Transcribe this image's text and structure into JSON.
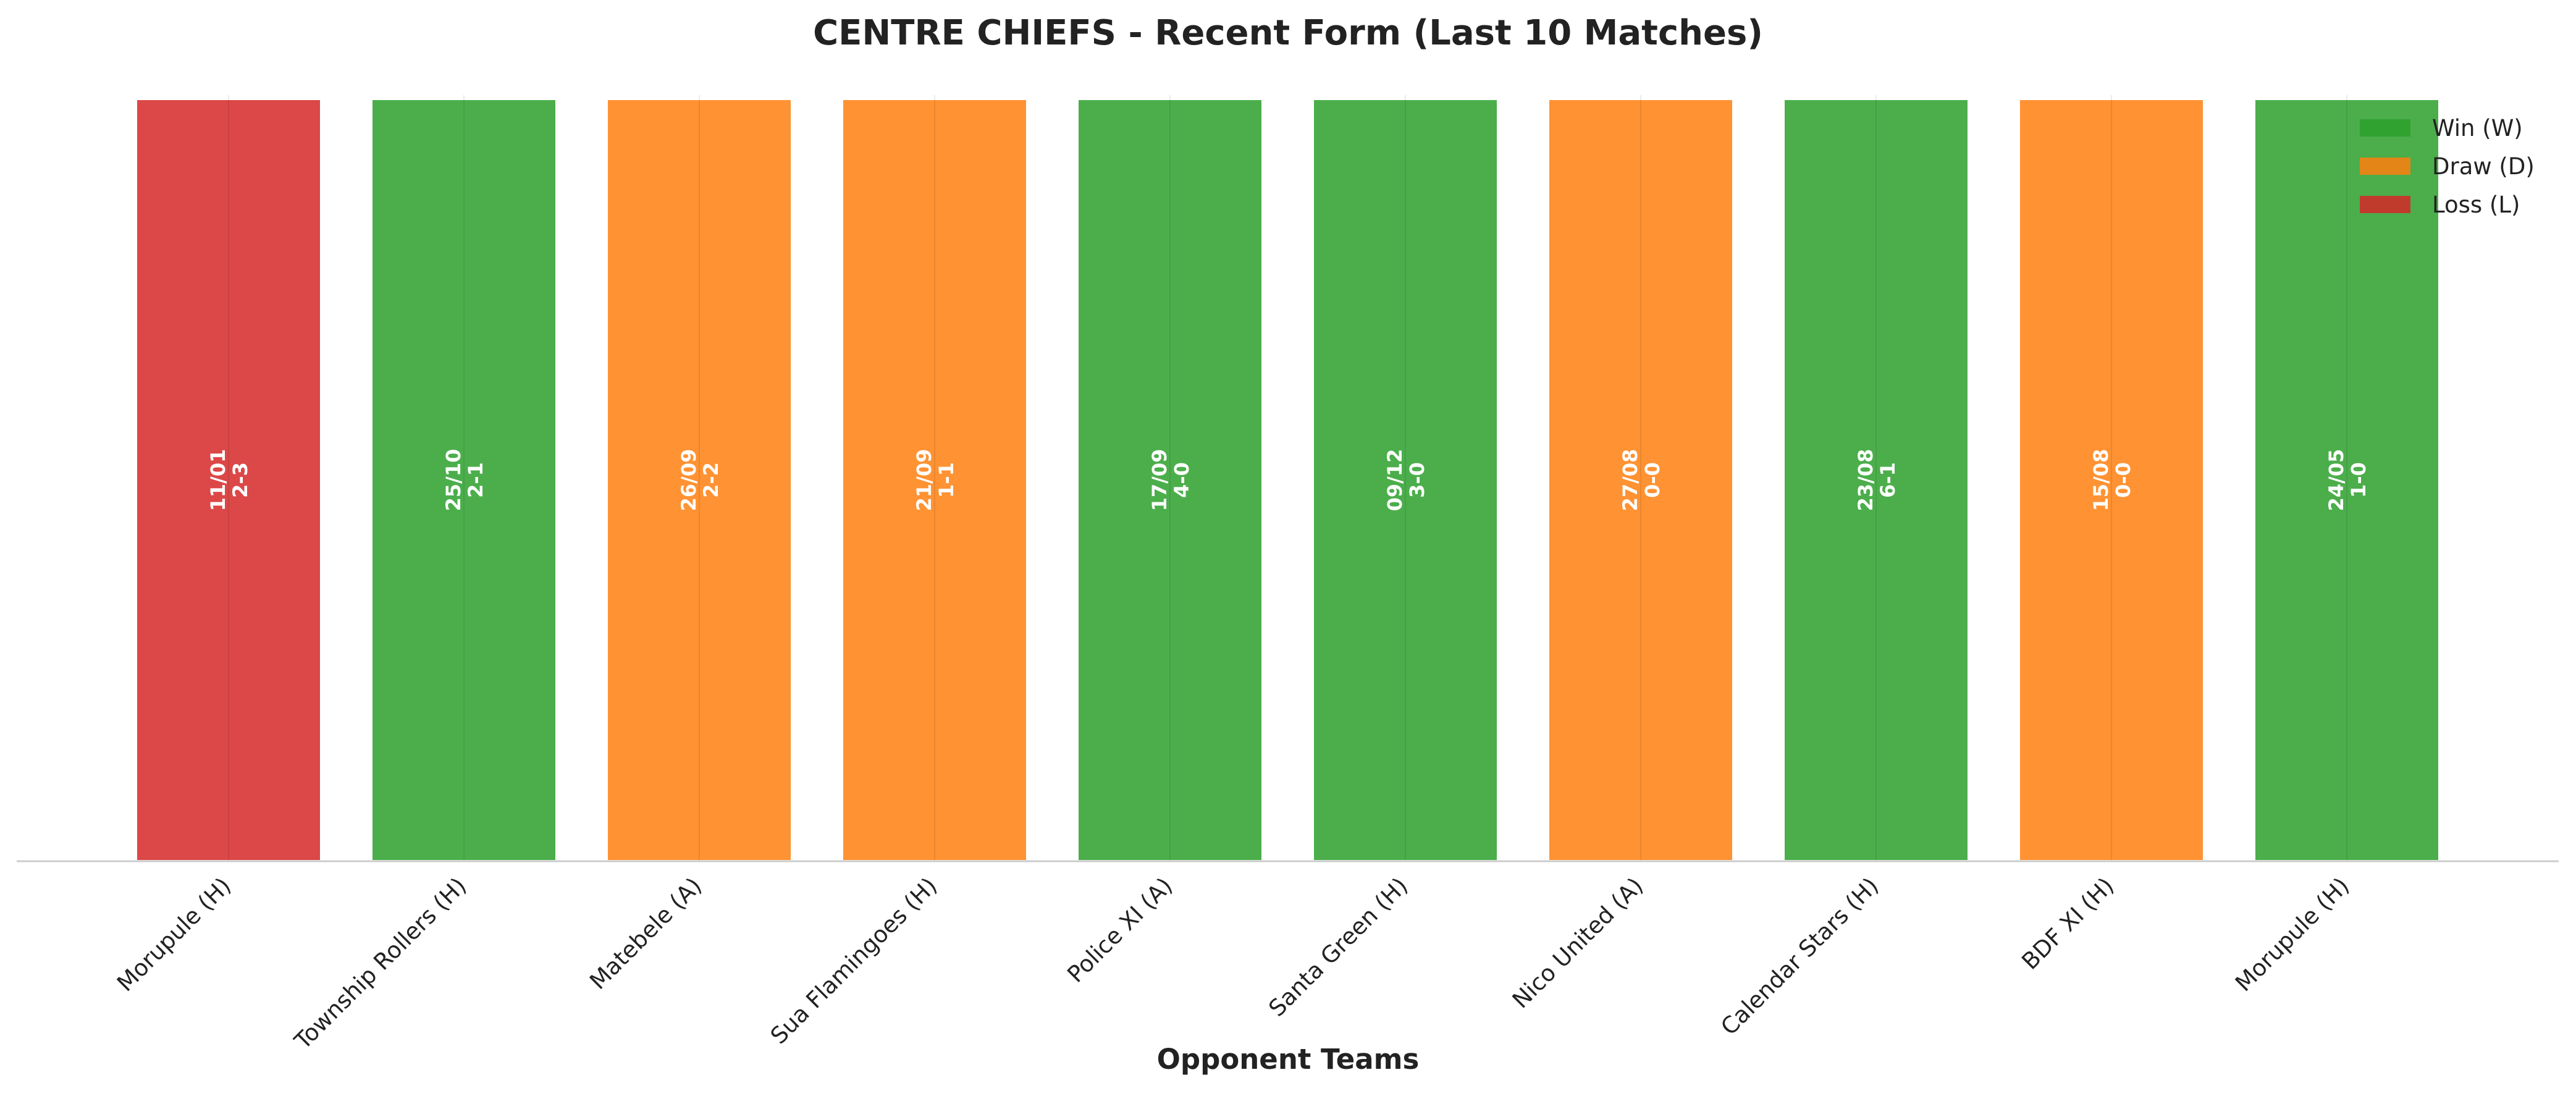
{
  "chart_data": {
    "type": "bar",
    "title": "CENTRE CHIEFS - Recent Form (Last 10 Matches)",
    "x_label": "Opponent Teams",
    "categories": [
      "Morupule (H)",
      "Township Rollers (H)",
      "Matebele (A)",
      "Sua Flamingoes (H)",
      "Police XI (A)",
      "Santa Green (H)",
      "Nico United (A)",
      "Calendar Stars (H)",
      "BDF XI (H)",
      "Morupule (H)"
    ],
    "values": [
      1,
      1,
      1,
      1,
      1,
      1,
      1,
      1,
      1,
      1
    ],
    "dates": [
      "11/01",
      "25/10",
      "26/09",
      "21/09",
      "17/09",
      "09/12",
      "27/08",
      "23/08",
      "15/08",
      "24/05"
    ],
    "scores": [
      "2-3",
      "2-1",
      "2-2",
      "1-1",
      "4-0",
      "3-0",
      "0-0",
      "6-1",
      "0-0",
      "1-0"
    ],
    "colors": [
      "#d62728",
      "#2ca02c",
      "#ff7f0e",
      "#ff7f0e",
      "#2ca02c",
      "#2ca02c",
      "#ff7f0e",
      "#2ca02c",
      "#ff7f0e",
      "#2ca02c"
    ],
    "legend": [
      {
        "name": "Win (W)",
        "color": "#2ca02c"
      },
      {
        "name": "Draw (D)",
        "color": "#ff7f0e"
      },
      {
        "name": "Loss (L)",
        "color": "#d62728"
      }
    ],
    "legend_position": "upper right",
    "ylim": [
      0,
      1
    ],
    "grid": true
  }
}
